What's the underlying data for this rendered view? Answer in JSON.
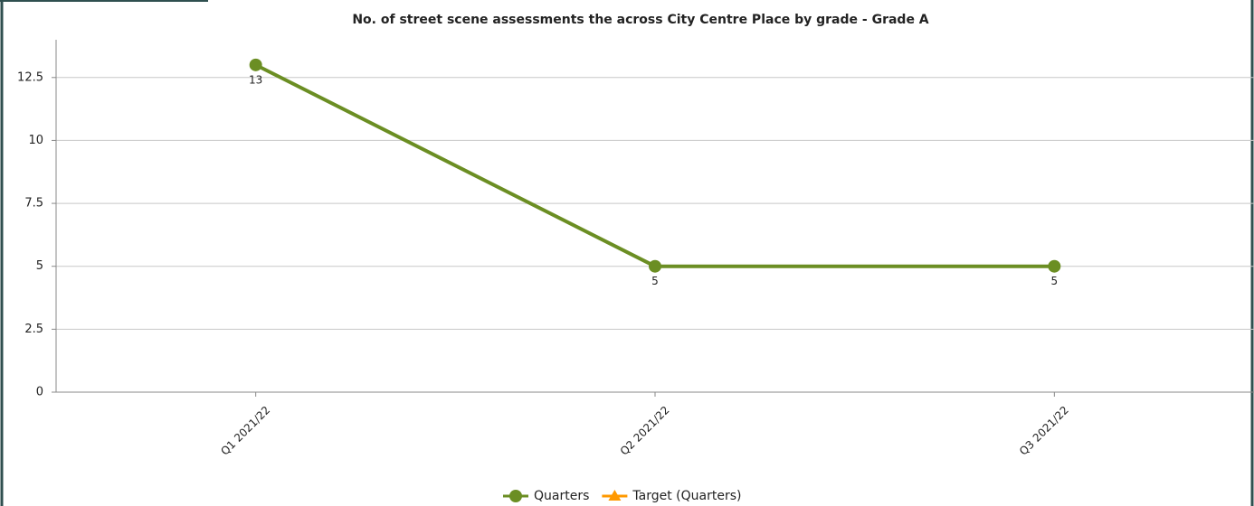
{
  "chart_data": {
    "type": "line",
    "title": "No. of street scene assessments the across City Centre Place by grade - Grade A",
    "categories": [
      "Q1 2021/22",
      "Q2 2021/22",
      "Q3 2021/22"
    ],
    "series": [
      {
        "name": "Quarters",
        "color": "#6b8e23",
        "marker": "circle",
        "values": [
          13,
          5,
          5
        ]
      },
      {
        "name": "Target (Quarters)",
        "color": "#ff9900",
        "marker": "triangle",
        "values": [
          null,
          null,
          null
        ]
      }
    ],
    "ylim": [
      0,
      14
    ],
    "yticks": [
      0,
      2.5,
      5,
      7.5,
      10,
      12.5
    ],
    "grid": true,
    "legend": "bottom"
  }
}
